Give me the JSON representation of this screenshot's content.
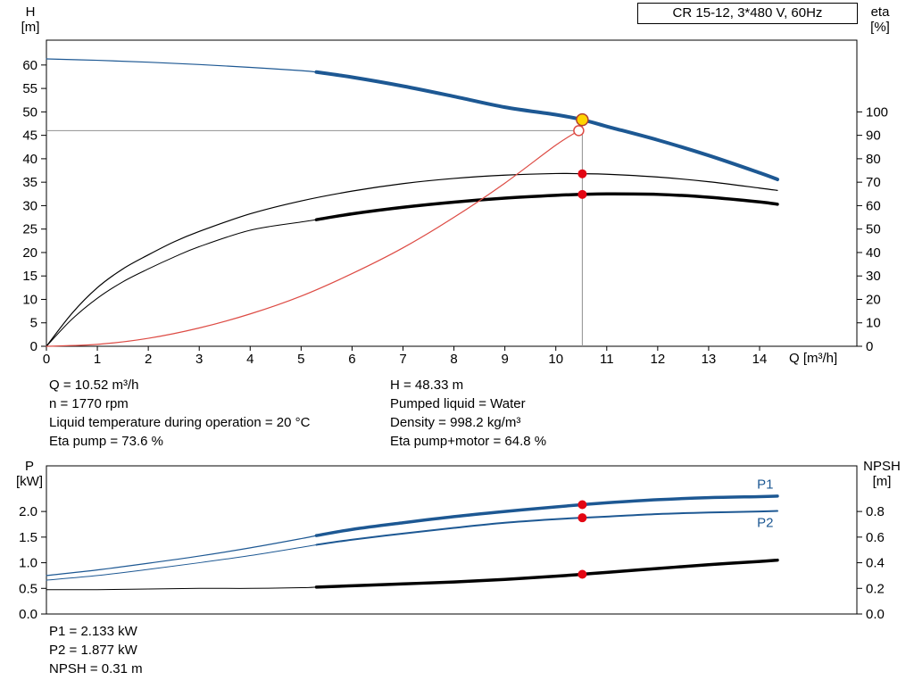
{
  "colors": {
    "blue": "#1d5893",
    "black": "#000000",
    "red": "#dd4b44",
    "red_dot": "#e30613",
    "yellow": "#ffd400",
    "yellow_stroke": "#b04030",
    "guide": "#909090",
    "axis": "#000000",
    "text": "#000000"
  },
  "chart_data": [
    {
      "type": "line",
      "title": "CR 15-12, 3*480 V, 60Hz",
      "x_axis": {
        "label": "Q [m³/h]",
        "min": 0,
        "max": 15.91,
        "ticks": [
          {
            "v": 0,
            "t": "0"
          },
          {
            "v": 1,
            "t": "1"
          },
          {
            "v": 2,
            "t": "2"
          },
          {
            "v": 3,
            "t": "3"
          },
          {
            "v": 4,
            "t": "4"
          },
          {
            "v": 5,
            "t": "5"
          },
          {
            "v": 6,
            "t": "6"
          },
          {
            "v": 7,
            "t": "7"
          },
          {
            "v": 8,
            "t": "8"
          },
          {
            "v": 9,
            "t": "9"
          },
          {
            "v": 10,
            "t": "10"
          },
          {
            "v": 11,
            "t": "11"
          },
          {
            "v": 12,
            "t": "12"
          },
          {
            "v": 13,
            "t": "13"
          },
          {
            "v": 14,
            "t": "14"
          }
        ]
      },
      "left_axis": {
        "title1": "H",
        "title2": "[m]",
        "min": 0,
        "max": 65.3,
        "ticks": [
          {
            "v": 0,
            "t": "0"
          },
          {
            "v": 5,
            "t": "5"
          },
          {
            "v": 10,
            "t": "10"
          },
          {
            "v": 15,
            "t": "15"
          },
          {
            "v": 20,
            "t": "20"
          },
          {
            "v": 25,
            "t": "25"
          },
          {
            "v": 30,
            "t": "30"
          },
          {
            "v": 35,
            "t": "35"
          },
          {
            "v": 40,
            "t": "40"
          },
          {
            "v": 45,
            "t": "45"
          },
          {
            "v": 50,
            "t": "50"
          },
          {
            "v": 55,
            "t": "55"
          },
          {
            "v": 60,
            "t": "60"
          }
        ]
      },
      "right_axis": {
        "title1": "eta",
        "title2": "[%]",
        "min": 0,
        "max": 130.6,
        "ticks": [
          {
            "v": 0,
            "t": "0"
          },
          {
            "v": 10,
            "t": "10"
          },
          {
            "v": 20,
            "t": "20"
          },
          {
            "v": 30,
            "t": "30"
          },
          {
            "v": 40,
            "t": "40"
          },
          {
            "v": 50,
            "t": "50"
          },
          {
            "v": 60,
            "t": "60"
          },
          {
            "v": 70,
            "t": "70"
          },
          {
            "v": 80,
            "t": "80"
          },
          {
            "v": 90,
            "t": "90"
          },
          {
            "v": 100,
            "t": "100"
          }
        ]
      },
      "guides": [
        {
          "type": "h",
          "axis": "left",
          "v": 46.0,
          "x1": 0,
          "x2": 10.45
        },
        {
          "type": "v",
          "axis": "left",
          "x": 10.52,
          "v1": 0,
          "v2": 48.33
        }
      ],
      "series": [
        {
          "name": "head-curve-thin",
          "axis": "left",
          "color": "blue",
          "width": 1.2,
          "points": [
            [
              0,
              61.3
            ],
            [
              1,
              61.0
            ],
            [
              2,
              60.6
            ],
            [
              3,
              60.1
            ],
            [
              4,
              59.5
            ],
            [
              5,
              58.8
            ],
            [
              5.3,
              58.5
            ]
          ]
        },
        {
          "name": "head-curve",
          "axis": "left",
          "color": "blue",
          "width": 4,
          "points": [
            [
              5.3,
              58.5
            ],
            [
              6,
              57.4
            ],
            [
              7,
              55.5
            ],
            [
              8,
              53.3
            ],
            [
              9,
              51.0
            ],
            [
              10,
              49.4
            ],
            [
              10.52,
              48.33
            ],
            [
              11,
              46.9
            ],
            [
              12,
              44.0
            ],
            [
              13,
              40.7
            ],
            [
              14,
              37.0
            ],
            [
              14.35,
              35.6
            ]
          ]
        },
        {
          "name": "eta-pump-curve",
          "axis": "right",
          "color": "black",
          "width": 1.2,
          "points": [
            [
              0,
              0
            ],
            [
              0.5,
              14
            ],
            [
              1,
              25
            ],
            [
              1.5,
              33
            ],
            [
              2,
              39
            ],
            [
              2.5,
              44.5
            ],
            [
              3,
              49
            ],
            [
              4,
              56.5
            ],
            [
              5,
              62
            ],
            [
              6,
              66.2
            ],
            [
              7,
              69.4
            ],
            [
              8,
              71.6
            ],
            [
              9,
              73.0
            ],
            [
              10,
              73.7
            ],
            [
              10.52,
              73.6
            ],
            [
              11,
              73.4
            ],
            [
              12,
              72.2
            ],
            [
              13,
              70.2
            ],
            [
              14,
              67.5
            ],
            [
              14.35,
              66.5
            ]
          ]
        },
        {
          "name": "eta-pump-motor-thin",
          "axis": "right",
          "color": "black",
          "width": 1,
          "points": [
            [
              0,
              0
            ],
            [
              0.5,
              11.5
            ],
            [
              1,
              20.5
            ],
            [
              1.5,
              27.5
            ],
            [
              2,
              33
            ],
            [
              2.5,
              38
            ],
            [
              3,
              42.5
            ],
            [
              4,
              49.5
            ],
            [
              5,
              53
            ],
            [
              5.3,
              54
            ]
          ]
        },
        {
          "name": "eta-pump-motor-curve",
          "axis": "right",
          "color": "black",
          "width": 3.5,
          "points": [
            [
              5.3,
              54
            ],
            [
              6,
              56.5
            ],
            [
              7,
              59.3
            ],
            [
              8,
              61.5
            ],
            [
              9,
              63.2
            ],
            [
              10,
              64.4
            ],
            [
              10.52,
              64.8
            ],
            [
              11,
              65.0
            ],
            [
              12,
              64.8
            ],
            [
              13,
              63.6
            ],
            [
              14,
              61.6
            ],
            [
              14.35,
              60.6
            ]
          ]
        },
        {
          "name": "system-curve",
          "axis": "left",
          "color": "red",
          "width": 1.2,
          "points": [
            [
              0,
              0
            ],
            [
              1,
              0.4
            ],
            [
              2,
              1.7
            ],
            [
              3,
              3.9
            ],
            [
              4,
              6.9
            ],
            [
              5,
              10.7
            ],
            [
              6,
              15.5
            ],
            [
              7,
              21.0
            ],
            [
              8,
              27.5
            ],
            [
              9,
              34.8
            ],
            [
              10,
              42.9
            ],
            [
              10.45,
              46.0
            ]
          ]
        }
      ],
      "markers": [
        {
          "name": "requested-duty-point",
          "type": "open",
          "axis": "left",
          "x": 10.45,
          "y": 46.0,
          "color": "red",
          "r": 5.5
        },
        {
          "name": "eta-pump-dot",
          "type": "dot",
          "axis": "right",
          "x": 10.52,
          "y": 73.6,
          "color": "red_dot",
          "r": 5
        },
        {
          "name": "eta-pump-motor-dot",
          "type": "dot",
          "axis": "right",
          "x": 10.52,
          "y": 64.8,
          "color": "red_dot",
          "r": 5
        },
        {
          "name": "operating-point",
          "type": "duty",
          "axis": "left",
          "x": 10.52,
          "y": 48.33,
          "color": "yellow",
          "r": 6.5
        }
      ],
      "annotations": []
    },
    {
      "type": "line",
      "title": "",
      "x_axis": {
        "label": "",
        "min": 0,
        "max": 15.91,
        "ticks": []
      },
      "left_axis": {
        "title1": "P",
        "title2": "[kW]",
        "min": 0,
        "max": 2.89,
        "ticks": [
          {
            "v": 0,
            "t": "0.0"
          },
          {
            "v": 0.5,
            "t": "0.5"
          },
          {
            "v": 1,
            "t": "1.0"
          },
          {
            "v": 1.5,
            "t": "1.5"
          },
          {
            "v": 2,
            "t": "2.0"
          }
        ]
      },
      "right_axis": {
        "title1": "NPSH",
        "title2": "[m]",
        "min": 0,
        "max": 1.156,
        "ticks": [
          {
            "v": 0,
            "t": "0.0"
          },
          {
            "v": 0.2,
            "t": "0.2"
          },
          {
            "v": 0.4,
            "t": "0.4"
          },
          {
            "v": 0.6,
            "t": "0.6"
          },
          {
            "v": 0.8,
            "t": "0.8"
          }
        ]
      },
      "guides": [],
      "series": [
        {
          "name": "p1-curve-thin",
          "axis": "left",
          "color": "blue",
          "width": 1.2,
          "points": [
            [
              0,
              0.75
            ],
            [
              1,
              0.86
            ],
            [
              2,
              0.99
            ],
            [
              3,
              1.13
            ],
            [
              4,
              1.29
            ],
            [
              5,
              1.47
            ],
            [
              5.3,
              1.53
            ]
          ]
        },
        {
          "name": "p1-curve",
          "axis": "left",
          "color": "blue",
          "width": 3.5,
          "points": [
            [
              5.3,
              1.53
            ],
            [
              6,
              1.65
            ],
            [
              7,
              1.78
            ],
            [
              8,
              1.9
            ],
            [
              9,
              2.0
            ],
            [
              10,
              2.09
            ],
            [
              10.52,
              2.133
            ],
            [
              11,
              2.17
            ],
            [
              12,
              2.23
            ],
            [
              13,
              2.27
            ],
            [
              14,
              2.29
            ],
            [
              14.35,
              2.3
            ]
          ]
        },
        {
          "name": "p2-curve-thin",
          "axis": "left",
          "color": "blue",
          "width": 1,
          "points": [
            [
              0,
              0.66
            ],
            [
              1,
              0.75
            ],
            [
              2,
              0.87
            ],
            [
              3,
              1.0
            ],
            [
              4,
              1.14
            ],
            [
              5,
              1.3
            ],
            [
              5.3,
              1.35
            ]
          ]
        },
        {
          "name": "p2-curve",
          "axis": "left",
          "color": "blue",
          "width": 2,
          "points": [
            [
              5.3,
              1.35
            ],
            [
              6,
              1.45
            ],
            [
              7,
              1.57
            ],
            [
              8,
              1.68
            ],
            [
              9,
              1.78
            ],
            [
              10,
              1.85
            ],
            [
              10.52,
              1.877
            ],
            [
              11,
              1.9
            ],
            [
              12,
              1.95
            ],
            [
              13,
              1.98
            ],
            [
              14,
              2.0
            ],
            [
              14.35,
              2.01
            ]
          ]
        },
        {
          "name": "npsh-curve-thin",
          "axis": "right",
          "color": "black",
          "width": 1,
          "points": [
            [
              0,
              0.19
            ],
            [
              1,
              0.19
            ],
            [
              2,
              0.195
            ],
            [
              3,
              0.2
            ],
            [
              4,
              0.2
            ],
            [
              5,
              0.205
            ],
            [
              5.3,
              0.21
            ]
          ]
        },
        {
          "name": "npsh-curve",
          "axis": "right",
          "color": "black",
          "width": 3.5,
          "points": [
            [
              5.3,
              0.21
            ],
            [
              6,
              0.22
            ],
            [
              7,
              0.235
            ],
            [
              8,
              0.25
            ],
            [
              9,
              0.27
            ],
            [
              10,
              0.295
            ],
            [
              10.52,
              0.31
            ],
            [
              11,
              0.325
            ],
            [
              12,
              0.355
            ],
            [
              13,
              0.385
            ],
            [
              14,
              0.41
            ],
            [
              14.35,
              0.42
            ]
          ]
        }
      ],
      "markers": [
        {
          "name": "p1-dot",
          "type": "dot",
          "axis": "left",
          "x": 10.52,
          "y": 2.133,
          "color": "red_dot",
          "r": 5
        },
        {
          "name": "p2-dot",
          "type": "dot",
          "axis": "left",
          "x": 10.52,
          "y": 1.877,
          "color": "red_dot",
          "r": 5
        },
        {
          "name": "npsh-dot",
          "type": "dot",
          "axis": "right",
          "x": 10.52,
          "y": 0.31,
          "color": "red_dot",
          "r": 5
        }
      ],
      "annotations": [
        {
          "text": "P1",
          "x": 13.95,
          "y": 2.45,
          "axis": "left",
          "color": "blue"
        },
        {
          "text": "P2",
          "x": 13.95,
          "y": 1.7,
          "axis": "left",
          "color": "blue"
        }
      ]
    }
  ],
  "duty_readout": {
    "left": [
      "Q = 10.52 m³/h",
      "n = 1770 rpm",
      "Liquid temperature during operation = 20 °C",
      "Eta pump = 73.6 %"
    ],
    "right": [
      "H = 48.33 m",
      "Pumped liquid = Water",
      "Density = 998.2 kg/m³",
      "Eta pump+motor = 64.8 %"
    ]
  },
  "power_readout": [
    "P1 = 2.133 kW",
    "P2 = 1.877 kW",
    "NPSH = 0.31 m"
  ]
}
